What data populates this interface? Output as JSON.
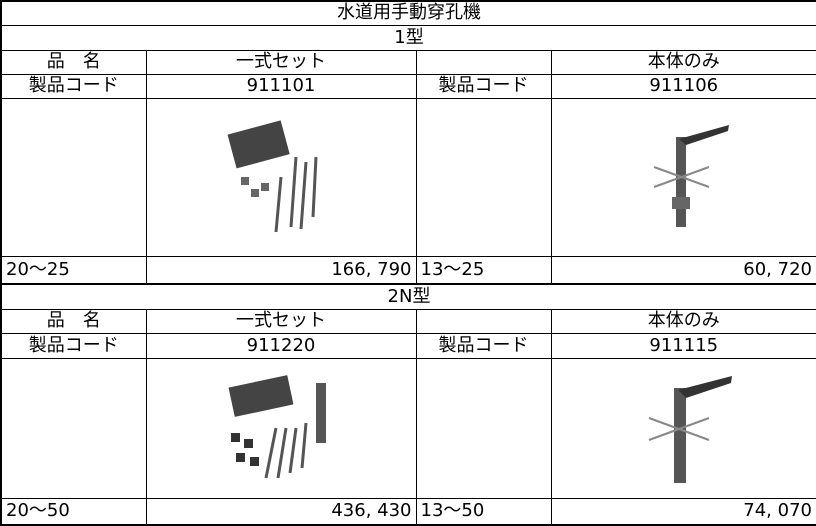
{
  "title": "水道用手動穿孔機",
  "sections": [
    {
      "model": "1型",
      "name_label": "品　名",
      "set_label": "一式セット",
      "body_label": "本体のみ",
      "code_label_1": "製品コード",
      "code_1": "911101",
      "code_label_2": "製品コード",
      "code_2": "911106",
      "size_1": "20～25",
      "price_1": "166, 790",
      "size_2": "13～25",
      "price_2": "60, 720"
    },
    {
      "model": "2N型",
      "name_label": "品　名",
      "set_label": "一式セット",
      "body_label": "本体のみ",
      "code_label_1": "製品コード",
      "code_1": "911220",
      "code_label_2": "製品コード",
      "code_2": "911115",
      "size_1": "20～50",
      "price_1": "436, 430",
      "size_2": "13～50",
      "price_2": "74, 070"
    }
  ]
}
